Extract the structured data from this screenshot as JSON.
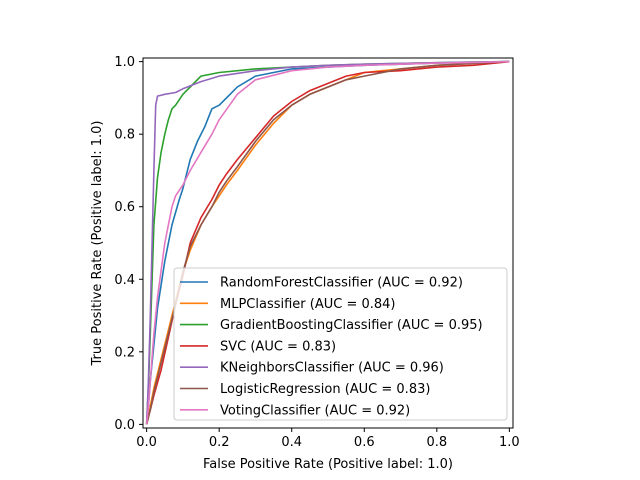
{
  "chart_data": {
    "type": "line",
    "title": "",
    "xlabel": "False Positive Rate (Positive label: 1.0)",
    "ylabel": "True Positive Rate (Positive label: 1.0)",
    "xlim": [
      -0.01,
      1.01
    ],
    "ylim": [
      -0.01,
      1.01
    ],
    "xticks": [
      "0.0",
      "0.2",
      "0.4",
      "0.6",
      "0.8",
      "1.0"
    ],
    "yticks": [
      "0.0",
      "0.2",
      "0.4",
      "0.6",
      "0.8",
      "1.0"
    ],
    "grid": false,
    "legend_position": "lower-right",
    "series": [
      {
        "name": "RandomForestClassifier (AUC = 0.92)",
        "color": "#1f77b4",
        "x": [
          0,
          0.005,
          0.01,
          0.02,
          0.03,
          0.05,
          0.07,
          0.09,
          0.1,
          0.12,
          0.14,
          0.16,
          0.18,
          0.2,
          0.23,
          0.25,
          0.3,
          0.4,
          0.5,
          0.6,
          0.7,
          0.8,
          0.9,
          1.0
        ],
        "y": [
          0,
          0.05,
          0.12,
          0.22,
          0.32,
          0.45,
          0.55,
          0.62,
          0.65,
          0.73,
          0.78,
          0.82,
          0.87,
          0.88,
          0.91,
          0.93,
          0.96,
          0.98,
          0.985,
          0.99,
          0.993,
          0.996,
          0.998,
          1.0
        ]
      },
      {
        "name": "MLPClassifier (AUC = 0.84)",
        "color": "#ff7f0e",
        "x": [
          0,
          0.005,
          0.01,
          0.02,
          0.04,
          0.06,
          0.08,
          0.1,
          0.12,
          0.15,
          0.18,
          0.2,
          0.22,
          0.25,
          0.3,
          0.35,
          0.4,
          0.45,
          0.5,
          0.55,
          0.6,
          0.7,
          0.8,
          0.9,
          1.0
        ],
        "y": [
          0,
          0.02,
          0.05,
          0.1,
          0.18,
          0.26,
          0.34,
          0.42,
          0.48,
          0.55,
          0.6,
          0.63,
          0.66,
          0.7,
          0.77,
          0.83,
          0.88,
          0.91,
          0.93,
          0.95,
          0.97,
          0.98,
          0.99,
          0.995,
          1.0
        ]
      },
      {
        "name": "GradientBoostingClassifier (AUC = 0.95)",
        "color": "#2ca02c",
        "x": [
          0,
          0.005,
          0.01,
          0.015,
          0.02,
          0.03,
          0.04,
          0.05,
          0.06,
          0.07,
          0.08,
          0.1,
          0.12,
          0.15,
          0.2,
          0.3,
          0.4,
          0.5,
          0.6,
          0.7,
          0.8,
          0.9,
          1.0
        ],
        "y": [
          0,
          0.1,
          0.25,
          0.4,
          0.55,
          0.68,
          0.75,
          0.8,
          0.84,
          0.87,
          0.88,
          0.91,
          0.93,
          0.96,
          0.97,
          0.98,
          0.985,
          0.99,
          0.993,
          0.995,
          0.997,
          0.999,
          1.0
        ]
      },
      {
        "name": "SVC (AUC = 0.83)",
        "color": "#d62728",
        "x": [
          0,
          0.005,
          0.01,
          0.02,
          0.04,
          0.06,
          0.08,
          0.1,
          0.12,
          0.15,
          0.18,
          0.2,
          0.22,
          0.25,
          0.3,
          0.35,
          0.4,
          0.45,
          0.5,
          0.55,
          0.6,
          0.7,
          0.8,
          0.9,
          1.0
        ],
        "y": [
          0,
          0.02,
          0.04,
          0.08,
          0.15,
          0.24,
          0.33,
          0.41,
          0.5,
          0.57,
          0.62,
          0.66,
          0.69,
          0.73,
          0.79,
          0.85,
          0.89,
          0.92,
          0.94,
          0.96,
          0.97,
          0.975,
          0.985,
          0.99,
          1.0
        ]
      },
      {
        "name": "KNeighborsClassifier (AUC = 0.96)",
        "color": "#9467bd",
        "x": [
          0,
          0.005,
          0.01,
          0.015,
          0.02,
          0.025,
          0.03,
          0.05,
          0.08,
          0.1,
          0.15,
          0.2,
          0.3,
          0.4,
          0.5,
          0.6,
          0.7,
          0.8,
          0.9,
          1.0
        ],
        "y": [
          0,
          0.12,
          0.3,
          0.5,
          0.7,
          0.88,
          0.905,
          0.91,
          0.915,
          0.925,
          0.945,
          0.96,
          0.975,
          0.985,
          0.99,
          0.993,
          0.995,
          0.997,
          0.999,
          1.0
        ]
      },
      {
        "name": "LogisticRegression (AUC = 0.83)",
        "color": "#8c564b",
        "x": [
          0,
          0.005,
          0.01,
          0.02,
          0.04,
          0.06,
          0.08,
          0.1,
          0.12,
          0.15,
          0.18,
          0.2,
          0.22,
          0.25,
          0.3,
          0.35,
          0.4,
          0.45,
          0.5,
          0.55,
          0.6,
          0.7,
          0.8,
          0.9,
          1.0
        ],
        "y": [
          0,
          0.02,
          0.04,
          0.09,
          0.17,
          0.25,
          0.33,
          0.42,
          0.49,
          0.55,
          0.6,
          0.64,
          0.67,
          0.71,
          0.78,
          0.84,
          0.88,
          0.91,
          0.93,
          0.95,
          0.96,
          0.98,
          0.99,
          0.995,
          1.0
        ]
      },
      {
        "name": "VotingClassifier (AUC = 0.92)",
        "color": "#e377c2",
        "x": [
          0,
          0.005,
          0.01,
          0.02,
          0.03,
          0.05,
          0.07,
          0.08,
          0.1,
          0.12,
          0.15,
          0.18,
          0.2,
          0.25,
          0.3,
          0.4,
          0.5,
          0.6,
          0.7,
          0.8,
          0.9,
          1.0
        ],
        "y": [
          0,
          0.05,
          0.12,
          0.25,
          0.35,
          0.5,
          0.6,
          0.63,
          0.66,
          0.7,
          0.75,
          0.8,
          0.84,
          0.91,
          0.95,
          0.975,
          0.985,
          0.99,
          0.993,
          0.996,
          0.998,
          1.0
        ]
      }
    ]
  }
}
